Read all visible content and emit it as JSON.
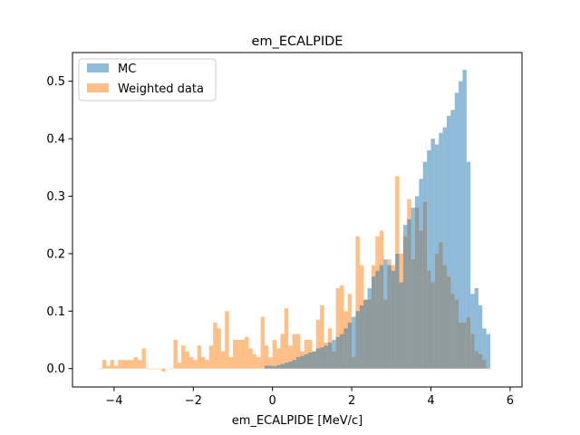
{
  "chart_data": {
    "type": "histogram",
    "title": "em_ECALPIDE",
    "xlabel": "em_ECALPIDE [MeV/c]",
    "ylabel": "",
    "xlim": [
      -5.05,
      6.3
    ],
    "ylim": [
      -0.032,
      0.55
    ],
    "xticks": [
      -4,
      -2,
      0,
      2,
      4,
      6
    ],
    "xtick_labels": [
      "−4",
      "−2",
      "0",
      "2",
      "4",
      "6"
    ],
    "yticks": [
      0.0,
      0.1,
      0.2,
      0.3,
      0.4,
      0.5
    ],
    "ytick_labels": [
      "0.0",
      "0.1",
      "0.2",
      "0.3",
      "0.4",
      "0.5"
    ],
    "legend_position": "upper-left",
    "series": [
      {
        "name": "MC",
        "color": "#1f77b4",
        "alpha": 0.5,
        "bin_start": -0.2,
        "bin_width": 0.1,
        "values": [
          0.005,
          0.005,
          0.004,
          0.006,
          0.008,
          0.01,
          0.012,
          0.015,
          0.02,
          0.022,
          0.025,
          0.028,
          0.03,
          0.035,
          0.037,
          0.04,
          0.045,
          0.05,
          0.055,
          0.06,
          0.07,
          0.08,
          0.09,
          0.1,
          0.11,
          0.12,
          0.14,
          0.16,
          0.17,
          0.18,
          0.19,
          0.18,
          0.17,
          0.2,
          0.15,
          0.25,
          0.26,
          0.28,
          0.3,
          0.33,
          0.36,
          0.38,
          0.4,
          0.39,
          0.41,
          0.42,
          0.44,
          0.45,
          0.48,
          0.5,
          0.52,
          0.36,
          0.13,
          0.14,
          0.11,
          0.07,
          0.06
        ]
      },
      {
        "name": "Weighted data",
        "color": "#ff7f0e",
        "alpha": 0.5,
        "bins": [
          [
            -4.4,
            0.0,
            0.005
          ],
          [
            -4.3,
            0.015,
            0.005
          ],
          [
            -4.2,
            0.005,
            0.005
          ],
          [
            -4.1,
            0.015,
            0.005
          ],
          [
            -4.0,
            0.005,
            0.005
          ],
          [
            -3.9,
            0.015,
            0.005
          ],
          [
            -3.8,
            0.015,
            0.005
          ],
          [
            -3.7,
            0.015,
            0.005
          ],
          [
            -3.6,
            0.015,
            0.005
          ],
          [
            -3.5,
            0.02,
            0.005
          ],
          [
            -3.4,
            0.015,
            0.005
          ],
          [
            -3.3,
            0.035,
            0.005
          ],
          [
            -3.2,
            0.0,
            0.005
          ],
          [
            -3.1,
            0.0,
            0.005
          ],
          [
            -3.0,
            0.0,
            0.005
          ],
          [
            -2.9,
            0.0,
            0.005
          ],
          [
            -2.8,
            -0.005,
            0.005
          ],
          [
            -2.6,
            0.0,
            0.005
          ],
          [
            -2.5,
            0.05,
            0.005
          ],
          [
            -2.4,
            0.01,
            0.005
          ],
          [
            -2.3,
            0.04,
            0.005
          ],
          [
            -2.2,
            0.03,
            0.005
          ],
          [
            -2.1,
            0.02,
            0.005
          ],
          [
            -2.0,
            0.015,
            0.005
          ],
          [
            -1.9,
            0.04,
            0.005
          ],
          [
            -1.8,
            0.02,
            0.005
          ],
          [
            -1.7,
            0.015,
            0.005
          ],
          [
            -1.6,
            0.04,
            0.005
          ],
          [
            -1.5,
            0.08,
            0.005
          ],
          [
            -1.4,
            0.07,
            0.005
          ],
          [
            -1.3,
            0.03,
            0.005
          ],
          [
            -1.2,
            0.1,
            0.005
          ],
          [
            -1.1,
            0.02,
            0.005
          ],
          [
            -1.0,
            0.05,
            0.005
          ],
          [
            -0.9,
            0.05,
            0.005
          ],
          [
            -0.8,
            0.05,
            0.005
          ],
          [
            -0.7,
            0.055,
            0.005
          ],
          [
            -0.6,
            0.035,
            0.005
          ],
          [
            -0.5,
            0.025,
            0.005
          ],
          [
            -0.4,
            0.02,
            0.005
          ],
          [
            -0.3,
            0.09,
            0.005
          ],
          [
            -0.2,
            0.04,
            0.005
          ],
          [
            -0.1,
            0.02,
            0.005
          ],
          [
            0.0,
            0.05,
            0.005
          ],
          [
            0.1,
            0.035,
            0.005
          ],
          [
            0.2,
            0.06,
            0.005
          ],
          [
            0.3,
            0.105,
            0.005
          ],
          [
            0.4,
            0.04,
            0.005
          ],
          [
            0.5,
            0.06,
            0.005
          ],
          [
            0.6,
            0.06,
            0.005
          ],
          [
            0.7,
            0.03,
            0.005
          ],
          [
            0.8,
            0.05,
            0.005
          ],
          [
            0.9,
            0.05,
            0.005
          ],
          [
            1.0,
            0.03,
            0.005
          ],
          [
            1.1,
            0.085,
            0.005
          ],
          [
            1.2,
            0.11,
            0.005
          ],
          [
            1.3,
            0.045,
            0.005
          ],
          [
            1.4,
            0.07,
            0.005
          ],
          [
            1.5,
            0.03,
            0.005
          ],
          [
            1.6,
            0.14,
            0.005
          ],
          [
            1.7,
            0.145,
            0.005
          ],
          [
            1.8,
            0.1,
            0.005
          ],
          [
            1.9,
            0.13,
            0.005
          ],
          [
            2.0,
            0.02,
            0.005
          ],
          [
            2.1,
            0.23,
            0.005
          ],
          [
            2.2,
            0.18,
            0.005
          ],
          [
            2.3,
            0.12,
            0.005
          ],
          [
            2.4,
            0.12,
            0.005
          ],
          [
            2.5,
            0.18,
            0.005
          ],
          [
            2.6,
            0.23,
            0.005
          ],
          [
            2.7,
            0.24,
            0.005
          ],
          [
            2.8,
            0.12,
            0.005
          ],
          [
            2.9,
            0.19,
            0.005
          ],
          [
            3.0,
            0.18,
            0.005
          ],
          [
            3.1,
            0.335,
            0.005
          ],
          [
            3.2,
            0.2,
            0.005
          ],
          [
            3.3,
            0.23,
            0.005
          ],
          [
            3.4,
            0.295,
            0.005
          ],
          [
            3.5,
            0.19,
            0.005
          ],
          [
            3.6,
            0.28,
            0.005
          ],
          [
            3.7,
            0.24,
            0.005
          ],
          [
            3.8,
            0.29,
            0.005
          ],
          [
            3.9,
            0.17,
            0.005
          ],
          [
            4.0,
            0.15,
            0.005
          ],
          [
            4.1,
            0.2,
            0.005
          ],
          [
            4.2,
            0.22,
            0.005
          ],
          [
            4.3,
            0.18,
            0.005
          ],
          [
            4.4,
            0.16,
            0.005
          ],
          [
            4.5,
            0.13,
            0.005
          ],
          [
            4.6,
            0.12,
            0.005
          ],
          [
            4.7,
            0.08,
            0.005
          ],
          [
            4.8,
            0.08,
            0.005
          ],
          [
            4.9,
            0.09,
            0.005
          ],
          [
            5.0,
            0.06,
            0.005
          ],
          [
            5.1,
            0.03,
            0.005
          ],
          [
            5.2,
            0.025,
            0.005
          ],
          [
            5.3,
            0.015,
            0.005
          ],
          [
            5.4,
            0.0,
            0.005
          ]
        ]
      }
    ]
  }
}
